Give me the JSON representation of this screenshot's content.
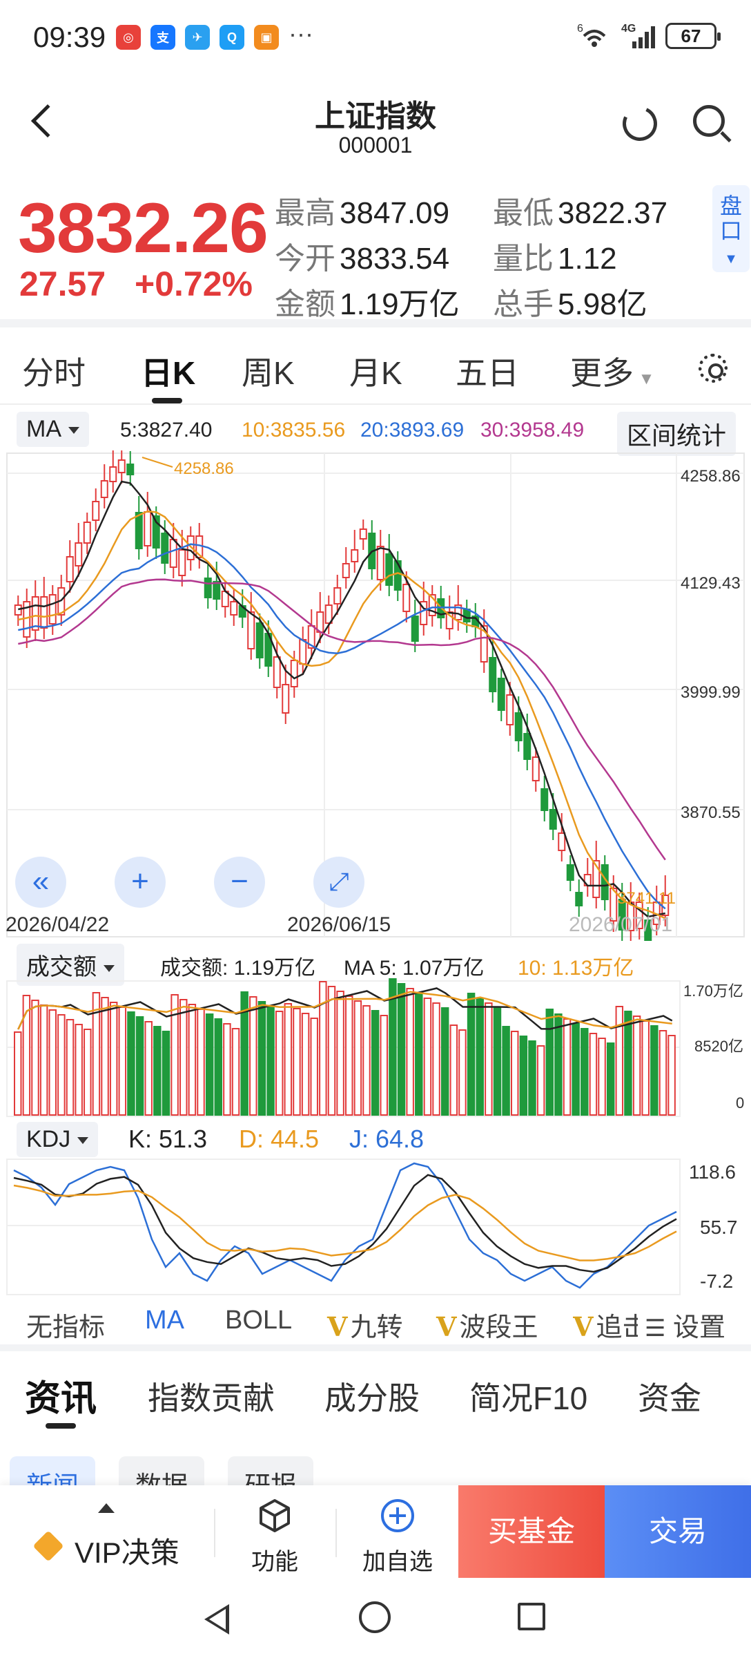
{
  "status_bar": {
    "time": "09:39",
    "more": "···",
    "network": "4G",
    "signal_prefix": "6",
    "battery": "67",
    "app_icons": [
      {
        "name": "app-icon-1",
        "color": "#e8413a",
        "glyph": "◎"
      },
      {
        "name": "app-icon-alipay",
        "color": "#1677ff",
        "glyph": "支"
      },
      {
        "name": "app-icon-3",
        "color": "#2aa0f0",
        "glyph": "✈"
      },
      {
        "name": "app-icon-search",
        "color": "#1e9ef5",
        "glyph": "Q"
      },
      {
        "name": "app-icon-5",
        "color": "#f28b1e",
        "glyph": "▣"
      }
    ]
  },
  "header": {
    "title": "上证指数",
    "code": "000001"
  },
  "quote": {
    "price": "3832.26",
    "change": "27.57",
    "change_pct": "+0.72%",
    "high_label": "最高",
    "high": "3847.09",
    "low_label": "最低",
    "low": "3822.37",
    "open_label": "今开",
    "open": "3833.54",
    "vol_ratio_label": "量比",
    "vol_ratio": "1.12",
    "amount_label": "金额",
    "amount": "1.19万亿",
    "turnover_label": "总手",
    "turnover": "5.98亿",
    "pankou": "盘口"
  },
  "kline_tabs": [
    "分时",
    "日K",
    "周K",
    "月K",
    "五日",
    "更多"
  ],
  "ma_bar": {
    "selector": "MA",
    "ma5": "5:3827.40",
    "ma10": "10:3835.56",
    "ma20": "20:3893.69",
    "ma30": "30:3958.49",
    "stats_button": "区间统计"
  },
  "price_chart": {
    "y_labels": [
      "4258.86",
      "4129.43",
      "3999.99",
      "3870.55"
    ],
    "max_annotation": "4258.86",
    "min_annotation": "3741.11",
    "dates": [
      "2026/04/22",
      "2026/06/15",
      "2026/07/01"
    ]
  },
  "volume_bar": {
    "selector": "成交额",
    "value": "成交额: 1.19万亿",
    "ma5": "MA 5: 1.07万亿",
    "ma10": "10: 1.13万亿",
    "y_labels": [
      "1.70万亿",
      "8520亿",
      "0"
    ]
  },
  "kdj_bar": {
    "selector": "KDJ",
    "k": "K: 51.3",
    "d": "D: 44.5",
    "j": "J: 64.8",
    "y_labels": [
      "118.6",
      "55.7",
      "-7.2"
    ]
  },
  "indicator_tabs": [
    "无指标",
    "MA",
    "BOLL",
    "九转",
    "波段王",
    "追击"
  ],
  "indicator_settings": "设置",
  "news_tabs": [
    "资讯",
    "指数贡献",
    "成分股",
    "简况F10",
    "资金"
  ],
  "news_subtabs": [
    "新闻",
    "数据",
    "研报"
  ],
  "bottom_bar": {
    "vip": "VIP决策",
    "function": "功能",
    "add_watch": "加自选",
    "buy_fund": "买基金",
    "trade": "交易"
  },
  "colors": {
    "up": "#e23a3a",
    "down": "#1f9a3c",
    "ma5": "#222222",
    "ma10": "#e99a1f",
    "ma20": "#2c6fd6",
    "ma30": "#b3388f"
  }
}
